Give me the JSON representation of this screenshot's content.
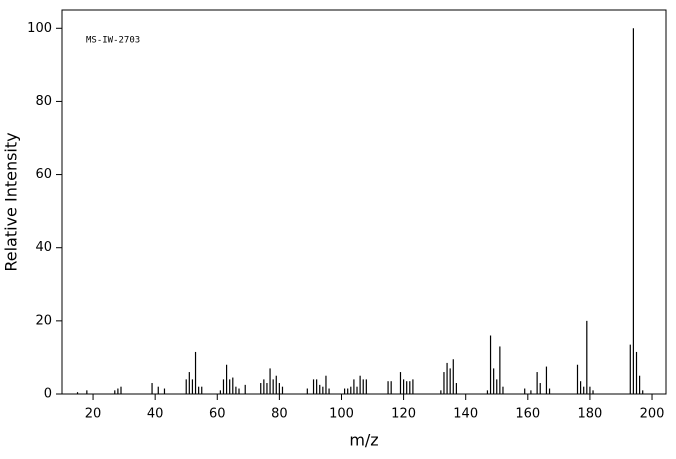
{
  "chart_data": {
    "type": "stem",
    "annotation": "MS-IW-2703",
    "x_label": "m/z",
    "y_label": "Relative Intensity",
    "x": [
      15,
      18,
      27,
      28,
      29,
      39,
      41,
      43,
      50,
      51,
      52,
      53,
      54,
      55,
      61,
      62,
      63,
      64,
      65,
      66,
      67,
      69,
      74,
      75,
      76,
      77,
      78,
      79,
      80,
      81,
      89,
      91,
      92,
      93,
      94,
      95,
      96,
      101,
      102,
      103,
      104,
      105,
      106,
      107,
      108,
      115,
      116,
      119,
      120,
      121,
      122,
      123,
      132,
      133,
      134,
      135,
      136,
      137,
      147,
      148,
      149,
      150,
      151,
      152,
      159,
      161,
      163,
      164,
      166,
      167,
      176,
      177,
      178,
      179,
      180,
      181,
      193,
      194,
      195,
      196,
      197
    ],
    "values": [
      0.5,
      1,
      1,
      1.5,
      2,
      3,
      2,
      1.5,
      4,
      6,
      4,
      11.5,
      2,
      2,
      1,
      4,
      8,
      4,
      4.5,
      2,
      1.5,
      2.5,
      3,
      4,
      3,
      7,
      4,
      5,
      3,
      2,
      1.5,
      4,
      4,
      2.5,
      2,
      5,
      1.5,
      1.5,
      1.5,
      2,
      4,
      2,
      5,
      4,
      4,
      3.5,
      3.5,
      6,
      4,
      3.5,
      3.5,
      4,
      1,
      6,
      8.5,
      7,
      9.5,
      3,
      1,
      16,
      7,
      4,
      13,
      2,
      1.5,
      1,
      6,
      3,
      7.5,
      1.5,
      8,
      3.5,
      2,
      20,
      2,
      1,
      13.5,
      100,
      11.5,
      5,
      1
    ],
    "color": "#000000",
    "xlim": [
      10,
      204.5
    ],
    "xticks": [
      20,
      40,
      60,
      80,
      100,
      120,
      140,
      160,
      180,
      200
    ],
    "ylim": [
      0,
      105
    ],
    "yticks": [
      0,
      20,
      40,
      60,
      80,
      100
    ]
  }
}
